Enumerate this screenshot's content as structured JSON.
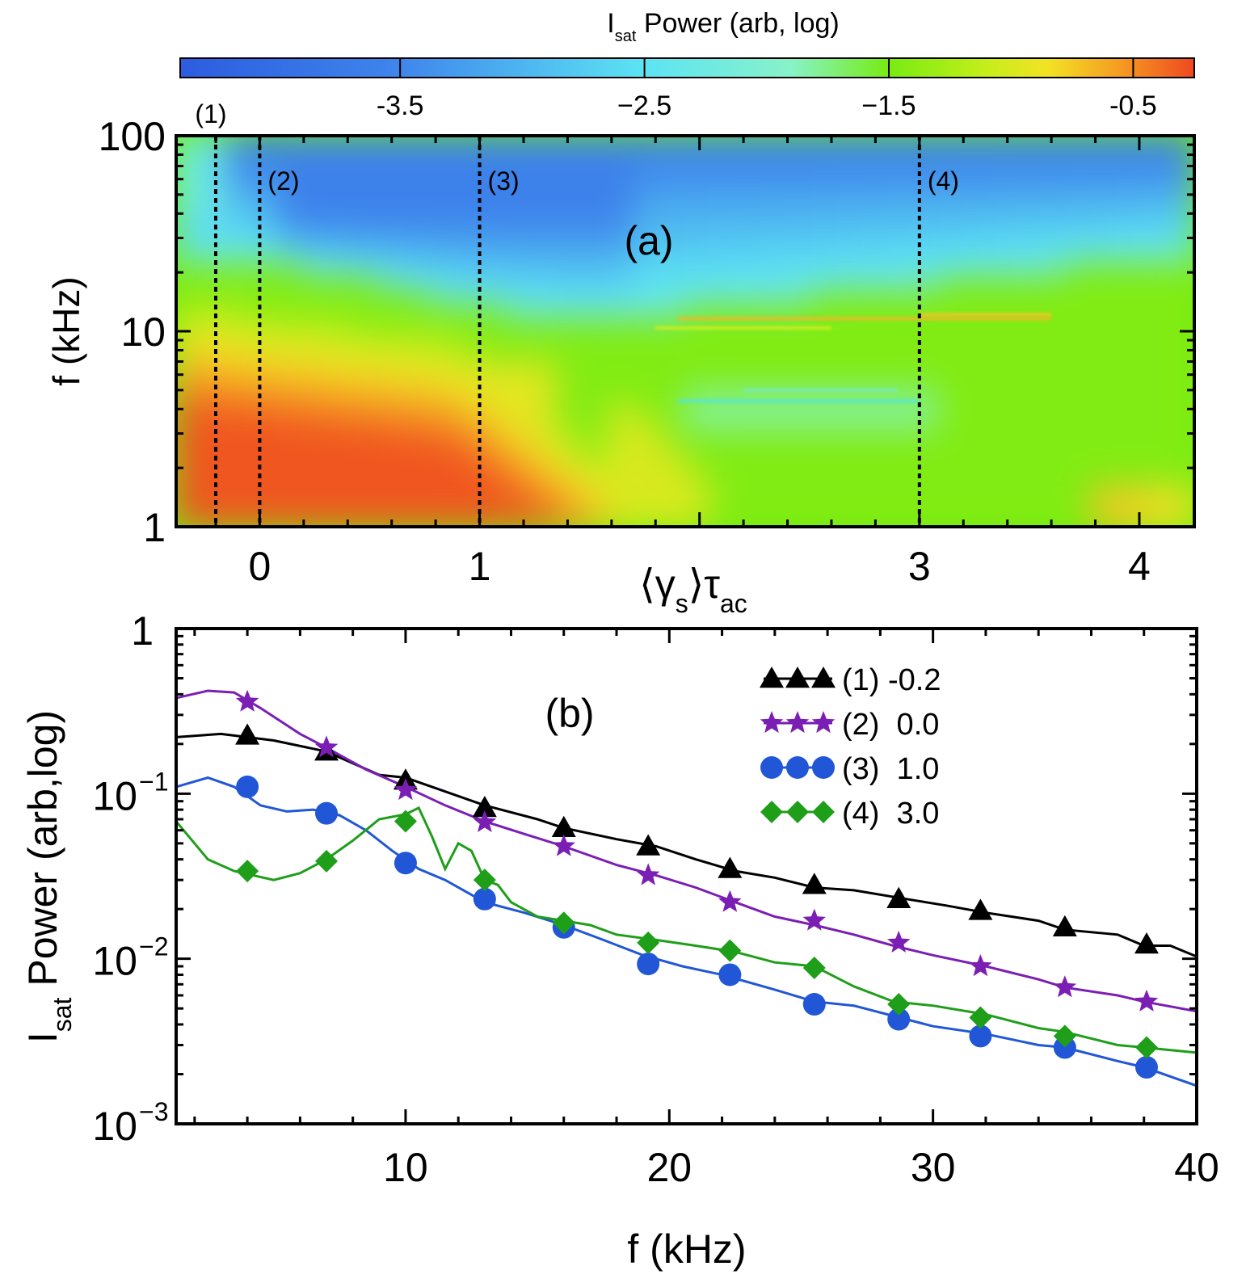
{
  "chart_data": [
    {
      "type": "heatmap",
      "panel_label": "(a)",
      "colorbar": {
        "title_main": "I",
        "title_sub": "sat",
        "title_rest": " Power (arb, log)",
        "ticks": [
          "-3.5",
          "−2.5",
          "−1.5",
          "-0.5"
        ],
        "tick_values": [
          -3.5,
          -2.5,
          -1.5,
          -0.5
        ],
        "range": [
          -4.4,
          -0.25
        ],
        "stops": [
          {
            "v": -4.4,
            "color": "#2c5ce0"
          },
          {
            "v": -3.5,
            "color": "#3f86ec"
          },
          {
            "v": -2.5,
            "color": "#5ce4f4"
          },
          {
            "v": -1.9,
            "color": "#88f2c8"
          },
          {
            "v": -1.5,
            "color": "#77ec12"
          },
          {
            "v": -1.1,
            "color": "#c6ee1a"
          },
          {
            "v": -0.85,
            "color": "#f3e224"
          },
          {
            "v": -0.55,
            "color": "#f59a22"
          },
          {
            "v": -0.25,
            "color": "#ef4820"
          }
        ]
      },
      "xlabel_parts": [
        "⟨γ",
        "s",
        "⟩τ",
        "ac"
      ],
      "ylabel": "f (kHz)",
      "x_ticks": [
        "0",
        "1",
        "3",
        "4"
      ],
      "x_tick_values": [
        0,
        1,
        3,
        4
      ],
      "xlim": [
        -0.38,
        4.25
      ],
      "y_ticks": [
        "1",
        "10",
        "100"
      ],
      "y_tick_values": [
        1,
        10,
        100
      ],
      "ylim": [
        1,
        100
      ],
      "yscale": "log",
      "markers": [
        {
          "label": "(1)",
          "x": -0.2
        },
        {
          "label": "(2)",
          "x": 0.0
        },
        {
          "label": "(3)",
          "x": 1.0
        },
        {
          "label": "(4)",
          "x": 3.0
        }
      ]
    },
    {
      "type": "line",
      "panel_label": "(b)",
      "xlabel": "f (kHz)",
      "ylabel_main": "I",
      "ylabel_sub": "sat",
      "ylabel_rest": " Power (arb,log)",
      "x_ticks": [
        "10",
        "20",
        "30",
        "40"
      ],
      "x_tick_values": [
        10,
        20,
        30,
        40
      ],
      "xlim": [
        1.3,
        40
      ],
      "ylim": [
        0.001,
        1
      ],
      "yscale": "log",
      "y_ticks": [
        {
          "mant": "10",
          "exp": "−3",
          "value": 0.001
        },
        {
          "mant": "10",
          "exp": "−2",
          "value": 0.01
        },
        {
          "mant": "10",
          "exp": "−1",
          "value": 0.1
        },
        {
          "mant": "1",
          "exp": "",
          "value": 1
        }
      ],
      "legend_position": "top-right",
      "series": [
        {
          "name": "(1) -0.2",
          "color": "#000000",
          "marker": "triangle",
          "x": [
            1.3,
            3,
            5,
            7,
            9,
            10,
            11,
            13,
            15,
            16,
            18,
            19.5,
            21,
            22.5,
            24,
            25.5,
            27,
            29,
            30.5,
            32,
            34,
            35,
            37,
            38,
            39,
            40
          ],
          "y": [
            0.22,
            0.23,
            0.21,
            0.18,
            0.13,
            0.125,
            0.11,
            0.085,
            0.07,
            0.062,
            0.053,
            0.048,
            0.04,
            0.034,
            0.031,
            0.027,
            0.026,
            0.023,
            0.021,
            0.019,
            0.017,
            0.015,
            0.014,
            0.012,
            0.012,
            0.0103
          ],
          "marker_x": [
            4,
            7,
            10,
            13,
            16,
            19.2,
            22.3,
            25.5,
            28.7,
            31.8,
            35,
            38.1
          ],
          "marker_y": [
            0.225,
            0.18,
            0.12,
            0.082,
            0.062,
            0.048,
            0.035,
            0.028,
            0.023,
            0.0195,
            0.0155,
            0.0122
          ]
        },
        {
          "name": "(2)  0.0",
          "color": "#7b1fb4",
          "marker": "star",
          "x": [
            1.3,
            2.5,
            3.5,
            4.5,
            6,
            7,
            8.5,
            10,
            11.5,
            13,
            14.5,
            16,
            18,
            19.5,
            21,
            22.5,
            24,
            25.5,
            27,
            28.5,
            30,
            32,
            34,
            35,
            37,
            38,
            40
          ],
          "y": [
            0.38,
            0.42,
            0.41,
            0.33,
            0.23,
            0.19,
            0.14,
            0.11,
            0.085,
            0.068,
            0.057,
            0.048,
            0.037,
            0.032,
            0.027,
            0.022,
            0.018,
            0.016,
            0.014,
            0.012,
            0.0105,
            0.009,
            0.0075,
            0.0067,
            0.006,
            0.0055,
            0.0048
          ],
          "marker_x": [
            4,
            7,
            10,
            13,
            16,
            19.2,
            22.3,
            25.5,
            28.7,
            31.8,
            35,
            38.1
          ],
          "marker_y": [
            0.36,
            0.19,
            0.105,
            0.067,
            0.048,
            0.032,
            0.022,
            0.017,
            0.0125,
            0.009,
            0.0067,
            0.0055
          ]
        },
        {
          "name": "(3)  1.0",
          "color": "#2157d6",
          "marker": "circle",
          "x": [
            1.3,
            2.5,
            3.5,
            4.5,
            5.5,
            6.5,
            7.5,
            8.5,
            9.5,
            10.5,
            11.5,
            13,
            14.5,
            16,
            17.5,
            19,
            20.5,
            22,
            24,
            25.5,
            27,
            28.5,
            30,
            32,
            34,
            35,
            37,
            38,
            40
          ],
          "y": [
            0.11,
            0.125,
            0.11,
            0.085,
            0.078,
            0.08,
            0.074,
            0.06,
            0.045,
            0.035,
            0.03,
            0.022,
            0.019,
            0.016,
            0.013,
            0.0105,
            0.009,
            0.008,
            0.0065,
            0.0055,
            0.0052,
            0.0045,
            0.0039,
            0.0035,
            0.003,
            0.0029,
            0.0024,
            0.0022,
            0.0017
          ],
          "marker_x": [
            4,
            7,
            10,
            13,
            16,
            19.2,
            22.3,
            25.5,
            28.7,
            31.8,
            35,
            38.1
          ],
          "marker_y": [
            0.11,
            0.076,
            0.038,
            0.023,
            0.0155,
            0.0093,
            0.008,
            0.0053,
            0.0043,
            0.0034,
            0.0029,
            0.0022
          ]
        },
        {
          "name": "(4)  3.0",
          "color": "#1f9e1a",
          "marker": "diamond",
          "x": [
            1.3,
            2.5,
            3.5,
            5,
            6,
            7,
            8,
            9,
            10,
            10.5,
            11,
            11.5,
            12,
            12.5,
            13,
            13.5,
            14,
            15,
            16,
            17,
            18,
            19.5,
            21,
            22.5,
            24,
            25.5,
            27,
            28.5,
            30,
            32,
            34,
            35,
            37,
            38,
            40
          ],
          "y": [
            0.068,
            0.04,
            0.034,
            0.03,
            0.033,
            0.04,
            0.052,
            0.07,
            0.075,
            0.082,
            0.055,
            0.035,
            0.05,
            0.045,
            0.03,
            0.028,
            0.022,
            0.018,
            0.017,
            0.016,
            0.014,
            0.013,
            0.012,
            0.011,
            0.0095,
            0.009,
            0.0068,
            0.0055,
            0.0052,
            0.0046,
            0.0038,
            0.0036,
            0.003,
            0.0029,
            0.0027
          ],
          "marker_x": [
            4,
            7,
            10,
            13,
            16,
            19.2,
            22.3,
            25.5,
            28.7,
            31.8,
            35,
            38.1
          ],
          "marker_y": [
            0.034,
            0.039,
            0.068,
            0.03,
            0.0165,
            0.0125,
            0.0112,
            0.0088,
            0.0053,
            0.0044,
            0.0034,
            0.0029
          ]
        }
      ]
    }
  ]
}
